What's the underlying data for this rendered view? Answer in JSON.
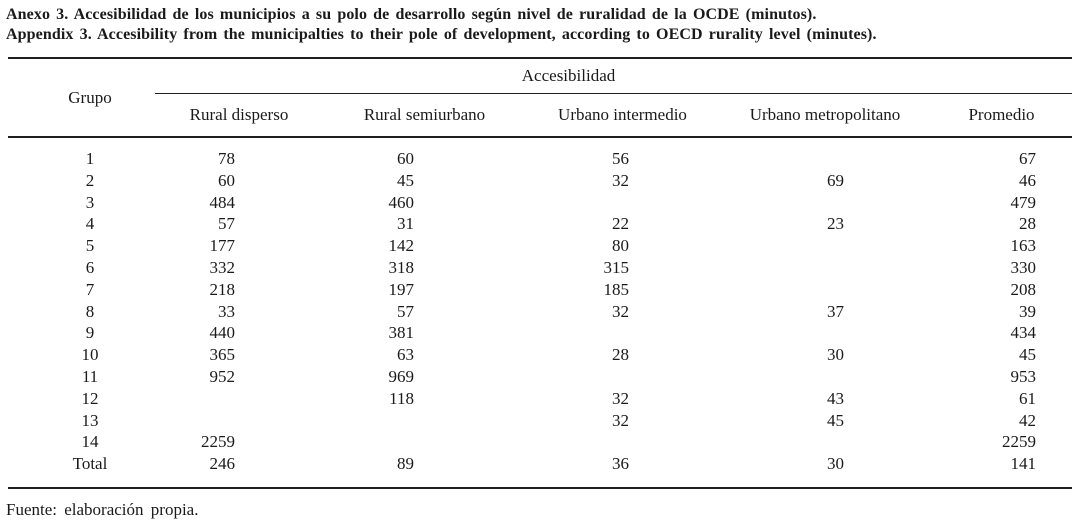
{
  "titles": {
    "line_es": "Anexo 3. Accesibilidad de los municipios a su polo de desarrollo según nivel de ruralidad de la OCDE (minutos).",
    "line_en": "Appendix 3. Accesibility from the municipalties to their pole of development, according to OECD rurality level (minutes)."
  },
  "table": {
    "group_header": "Accesibilidad",
    "row_header": "Grupo",
    "columns": [
      "Rural disperso",
      "Rural semiurbano",
      "Urbano intermedio",
      "Urbano metropolitano",
      "Promedio"
    ],
    "rows": [
      {
        "grupo": "1",
        "values": [
          "78",
          "60",
          "56",
          "",
          "67"
        ]
      },
      {
        "grupo": "2",
        "values": [
          "60",
          "45",
          "32",
          "69",
          "46"
        ]
      },
      {
        "grupo": "3",
        "values": [
          "484",
          "460",
          "",
          "",
          "479"
        ]
      },
      {
        "grupo": "4",
        "values": [
          "57",
          "31",
          "22",
          "23",
          "28"
        ]
      },
      {
        "grupo": "5",
        "values": [
          "177",
          "142",
          "80",
          "",
          "163"
        ]
      },
      {
        "grupo": "6",
        "values": [
          "332",
          "318",
          "315",
          "",
          "330"
        ]
      },
      {
        "grupo": "7",
        "values": [
          "218",
          "197",
          "185",
          "",
          "208"
        ]
      },
      {
        "grupo": "8",
        "values": [
          "33",
          "57",
          "32",
          "37",
          "39"
        ]
      },
      {
        "grupo": "9",
        "values": [
          "440",
          "381",
          "",
          "",
          "434"
        ]
      },
      {
        "grupo": "10",
        "values": [
          "365",
          "63",
          "28",
          "30",
          "45"
        ]
      },
      {
        "grupo": "11",
        "values": [
          "952",
          "969",
          "",
          "",
          "953"
        ]
      },
      {
        "grupo": "12",
        "values": [
          "",
          "118",
          "32",
          "43",
          "61"
        ]
      },
      {
        "grupo": "13",
        "values": [
          "",
          "",
          "32",
          "45",
          "42"
        ]
      },
      {
        "grupo": "14",
        "values": [
          "2259",
          "",
          "",
          "",
          "2259"
        ]
      },
      {
        "grupo": "Total",
        "values": [
          "246",
          "89",
          "36",
          "30",
          "141"
        ]
      }
    ]
  },
  "source_note": "Fuente: elaboración propia.",
  "colors": {
    "text": "#1a1a1a",
    "rule": "#1f1f1f",
    "background": "#ffffff"
  }
}
